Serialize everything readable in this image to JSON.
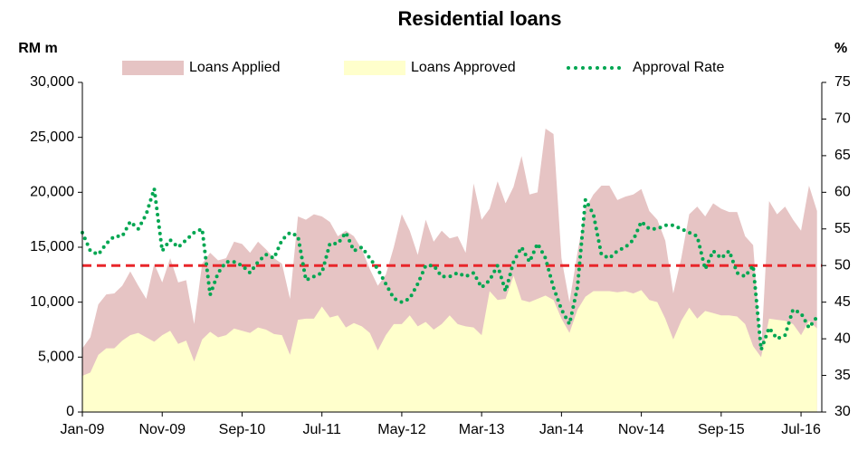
{
  "chart_data": {
    "type": "area",
    "title": "Residential loans",
    "y_label": "RM m",
    "y2_label": "%",
    "legend": "top",
    "categories": [
      "Jan-09",
      null,
      null,
      null,
      null,
      null,
      null,
      null,
      null,
      null,
      "Nov-09",
      null,
      null,
      null,
      null,
      null,
      null,
      null,
      null,
      null,
      "Sep-10",
      null,
      null,
      null,
      null,
      null,
      null,
      null,
      null,
      null,
      "Jul-11",
      null,
      null,
      null,
      null,
      null,
      null,
      null,
      null,
      null,
      "May-12",
      null,
      null,
      null,
      null,
      null,
      null,
      null,
      null,
      null,
      "Mar-13",
      null,
      null,
      null,
      null,
      null,
      null,
      null,
      null,
      null,
      "Jan-14",
      null,
      null,
      null,
      null,
      null,
      null,
      null,
      null,
      null,
      "Nov-14",
      null,
      null,
      null,
      null,
      null,
      null,
      null,
      null,
      null,
      "Sep-15",
      null,
      null,
      null,
      null,
      null,
      null,
      null,
      null,
      null,
      "Jul-16",
      null,
      null
    ],
    "series": [
      {
        "name": "Loans Applied",
        "color": "#e6c4c4",
        "style": "area",
        "values": [
          5800,
          6800,
          9800,
          10700,
          10800,
          11500,
          12800,
          11500,
          10300,
          13500,
          11800,
          14000,
          11800,
          12000,
          8000,
          13500,
          14500,
          13800,
          14000,
          15500,
          15300,
          14500,
          15500,
          14800,
          14000,
          13500,
          10300,
          17800,
          17500,
          18000,
          17800,
          17300,
          16000,
          16500,
          16000,
          14800,
          13000,
          11500,
          12500,
          15000,
          18000,
          16500,
          14300,
          17500,
          15500,
          16500,
          15800,
          16000,
          14500,
          20800,
          17500,
          18500,
          21000,
          19000,
          20500,
          23300,
          19800,
          20000,
          25800,
          25300,
          14000,
          10000,
          14500,
          18500,
          19800,
          20600,
          20600,
          19300,
          19600,
          19800,
          20300,
          18300,
          17500,
          15600,
          10800,
          14000,
          18000,
          18700,
          17800,
          19000,
          18500,
          18200,
          18200,
          16000,
          15200,
          5500,
          19200,
          18000,
          18700,
          17500,
          16500,
          20600,
          18300
        ]
      },
      {
        "name": "Loans Approved",
        "color": "#ffffcc",
        "style": "area",
        "values": [
          3300,
          3600,
          5200,
          5800,
          5800,
          6500,
          7000,
          7200,
          6800,
          6400,
          7000,
          7400,
          6200,
          6500,
          4600,
          6600,
          7300,
          6800,
          7000,
          7600,
          7400,
          7200,
          7700,
          7500,
          7100,
          7000,
          5200,
          8400,
          8500,
          8500,
          9600,
          8600,
          8800,
          7700,
          8100,
          7800,
          7200,
          5600,
          7000,
          8000,
          8000,
          8800,
          7800,
          8200,
          7500,
          8000,
          8800,
          8000,
          7800,
          7700,
          7000,
          11000,
          10200,
          10300,
          12400,
          10200,
          10000,
          10300,
          10600,
          10200,
          8500,
          7200,
          9300,
          10500,
          11000,
          11000,
          11000,
          10900,
          11000,
          10800,
          11100,
          10200,
          10000,
          8500,
          6600,
          8300,
          9500,
          8500,
          9200,
          9000,
          8800,
          8800,
          8700,
          8000,
          6000,
          5000,
          8500,
          8400,
          8300,
          8000,
          7000,
          8300,
          7600
        ]
      },
      {
        "name": "Approval Rate",
        "color": "#00a651",
        "style": "dotted",
        "axis": "y2",
        "values": [
          54.5,
          52,
          51.5,
          53,
          54,
          54,
          56,
          55,
          57,
          60.5,
          52,
          53.5,
          52.5,
          53.5,
          54.5,
          55,
          46,
          49,
          50.5,
          50.5,
          50,
          49,
          50.5,
          51.5,
          51,
          53.5,
          54.5,
          54,
          48,
          48.5,
          49,
          53,
          53,
          54.5,
          52,
          52.5,
          51,
          49.5,
          47.5,
          45.5,
          45,
          45.5,
          47.5,
          50,
          50,
          48.5,
          48.5,
          49,
          48.5,
          49,
          47,
          48,
          50,
          46.5,
          50.5,
          52.5,
          50.5,
          53,
          51,
          47,
          44,
          42,
          47,
          59,
          57,
          51.5,
          51,
          52,
          52.5,
          53.5,
          56,
          55,
          55,
          55.5,
          55.5,
          55,
          54.5,
          54,
          49.5,
          52,
          51,
          52,
          49,
          48.5,
          50,
          38.5,
          41.5,
          40,
          40.5,
          44,
          43.5,
          41.5,
          43
        ]
      }
    ],
    "reference_line": {
      "value": 50,
      "axis": "y2",
      "color": "#e8262a"
    },
    "ylim": [
      0,
      30000
    ],
    "yticks": [
      0,
      {
        "value": 5000,
        "label": "5,000"
      },
      {
        "value": 10000,
        "label": "10,000"
      },
      {
        "value": 15000,
        "label": "15,000"
      },
      {
        "value": 20000,
        "label": "20,000"
      },
      {
        "value": 25000,
        "label": "25,000"
      },
      {
        "value": 30000,
        "label": "30,000"
      }
    ],
    "y2lim": [
      30,
      75
    ],
    "y2ticks": [
      30,
      35,
      40,
      45,
      50,
      55,
      60,
      65,
      70,
      75
    ]
  }
}
